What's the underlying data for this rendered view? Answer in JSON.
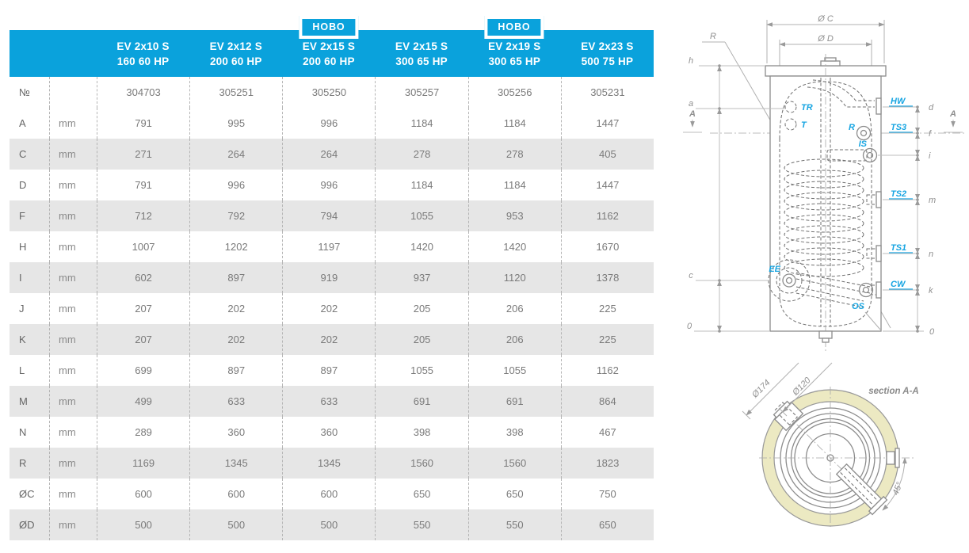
{
  "table": {
    "new_badge": {
      "label": "НОВО"
    },
    "columns": [
      {
        "model": "EV 2x10 S",
        "spec": "160 60 HP",
        "new": false
      },
      {
        "model": "EV 2x12 S",
        "spec": "200 60 HP",
        "new": false
      },
      {
        "model": "EV 2x15 S",
        "spec": "200 60 HP",
        "new": true
      },
      {
        "model": "EV 2x15 S",
        "spec": "300 65 HP",
        "new": false
      },
      {
        "model": "EV 2x19 S",
        "spec": "300 65 HP",
        "new": true
      },
      {
        "model": "EV 2x23 S",
        "spec": "500 75 HP",
        "new": false
      }
    ],
    "rows": [
      {
        "label": "№",
        "unit": "",
        "values": [
          "304703",
          "305251",
          "305250",
          "305257",
          "305256",
          "305231"
        ]
      },
      {
        "label": "A",
        "unit": "mm",
        "values": [
          "791",
          "995",
          "996",
          "1184",
          "1184",
          "1447"
        ]
      },
      {
        "label": "C",
        "unit": "mm",
        "values": [
          "271",
          "264",
          "264",
          "278",
          "278",
          "405"
        ]
      },
      {
        "label": "D",
        "unit": "mm",
        "values": [
          "791",
          "996",
          "996",
          "1184",
          "1184",
          "1447"
        ]
      },
      {
        "label": "F",
        "unit": "mm",
        "values": [
          "712",
          "792",
          "794",
          "1055",
          "953",
          "1162"
        ]
      },
      {
        "label": "H",
        "unit": "mm",
        "values": [
          "1007",
          "1202",
          "1197",
          "1420",
          "1420",
          "1670"
        ]
      },
      {
        "label": "I",
        "unit": "mm",
        "values": [
          "602",
          "897",
          "919",
          "937",
          "1120",
          "1378"
        ]
      },
      {
        "label": "J",
        "unit": "mm",
        "values": [
          "207",
          "202",
          "202",
          "205",
          "206",
          "225"
        ]
      },
      {
        "label": "K",
        "unit": "mm",
        "values": [
          "207",
          "202",
          "202",
          "205",
          "206",
          "225"
        ]
      },
      {
        "label": "L",
        "unit": "mm",
        "values": [
          "699",
          "897",
          "897",
          "1055",
          "1055",
          "1162"
        ]
      },
      {
        "label": "M",
        "unit": "mm",
        "values": [
          "499",
          "633",
          "633",
          "691",
          "691",
          "864"
        ]
      },
      {
        "label": "N",
        "unit": "mm",
        "values": [
          "289",
          "360",
          "360",
          "398",
          "398",
          "467"
        ]
      },
      {
        "label": "R",
        "unit": "mm",
        "values": [
          "1169",
          "1345",
          "1345",
          "1560",
          "1560",
          "1823"
        ]
      },
      {
        "label": "ØC",
        "unit": "mm",
        "values": [
          "600",
          "600",
          "600",
          "650",
          "650",
          "750"
        ]
      },
      {
        "label": "ØD",
        "unit": "mm",
        "values": [
          "500",
          "500",
          "500",
          "550",
          "550",
          "650"
        ]
      }
    ]
  },
  "diagram": {
    "dims": {
      "oc": "Ø C",
      "od": "Ø D",
      "d174": "Ø174",
      "d120": "Ø120",
      "angle": "45°"
    },
    "levels_left": {
      "r": "R",
      "h": "h",
      "a": "a",
      "c": "c",
      "zero": "0"
    },
    "levels_right": {
      "d": "d",
      "f": "f",
      "i": "i",
      "m": "m",
      "n": "n",
      "k": "k",
      "zero": "0"
    },
    "section_marker": "A",
    "ports": {
      "tr": "TR",
      "t": "T",
      "hw": "HW",
      "r": "R",
      "ts3": "TS3",
      "is": "IS",
      "ts2": "TS2",
      "ts1": "TS1",
      "ee": "EE",
      "cw": "CW",
      "os": "OS"
    },
    "section_title": "section A-A"
  },
  "colors": {
    "accent_blue": "#0aa2dc",
    "port_label": "#17a5e2",
    "row_shade": "#e6e6e6",
    "insulation": "#ece9c2"
  }
}
